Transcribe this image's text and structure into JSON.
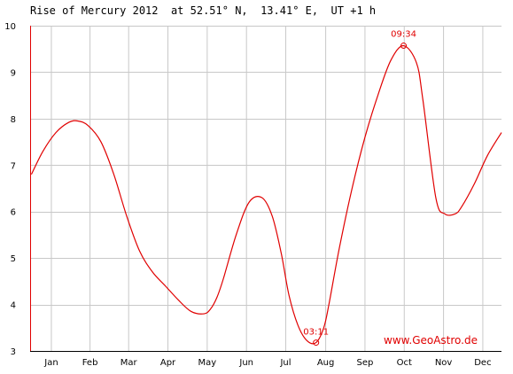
{
  "chart_data": {
    "type": "line",
    "title": "Rise of Mercury 2012  at 52.51° N,  13.41° E,  UT +1 h",
    "xlabel": "",
    "ylabel": "",
    "categories": [
      "Jan",
      "Feb",
      "Mar",
      "Apr",
      "May",
      "Jun",
      "Jul",
      "Aug",
      "Sep",
      "Oct",
      "Nov",
      "Dec"
    ],
    "xlim": [
      0,
      366
    ],
    "ylim": [
      3,
      10
    ],
    "yticks": [
      "10",
      "9",
      "8",
      "7",
      "6",
      "5",
      "4",
      "3"
    ],
    "grid": true,
    "series": [
      {
        "color": "#e00000",
        "x": [
          1,
          10,
          20,
          30,
          37,
          45,
          55,
          65,
          75,
          85,
          95,
          105,
          115,
          125,
          135,
          140,
          145,
          150,
          160,
          170,
          180,
          188,
          195,
          201,
          208,
          215,
          222,
          228,
          232,
          240,
          250,
          260,
          270,
          280,
          290,
          300,
          305,
          315,
          322,
          330,
          335,
          345,
          355,
          366
        ],
        "values": [
          6.8,
          7.3,
          7.7,
          7.92,
          7.95,
          7.85,
          7.5,
          6.8,
          5.9,
          5.15,
          4.7,
          4.4,
          4.1,
          3.85,
          3.8,
          3.9,
          4.15,
          4.55,
          5.5,
          6.2,
          6.3,
          5.9,
          5.1,
          4.2,
          3.55,
          3.22,
          3.18,
          3.5,
          4.0,
          5.2,
          6.5,
          7.6,
          8.5,
          9.25,
          9.57,
          9.2,
          8.4,
          6.3,
          5.95,
          5.95,
          6.1,
          6.6,
          7.2,
          7.7
        ]
      }
    ],
    "annotations": [
      {
        "label": "03:11",
        "x": 222,
        "y": 3.18
      },
      {
        "label": "09:34",
        "x": 290,
        "y": 9.57
      }
    ],
    "watermark": "www.GeoAstro.de"
  }
}
